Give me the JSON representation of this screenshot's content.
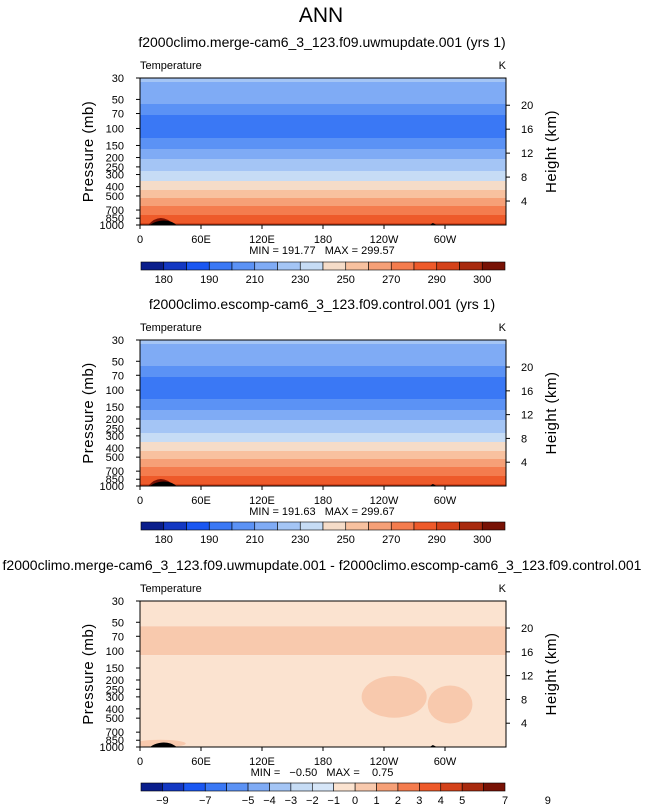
{
  "figure": {
    "title": "ANN"
  },
  "chart_data": [
    {
      "type": "heatmap",
      "title": "f2000climo.merge-cam6_3_123.f09.uwmupdate.001 (yrs 1)",
      "variable": "Temperature",
      "units": "K",
      "xlabel": "",
      "ylabel": "Pressure  (mb)",
      "y2label": "Height  (km)",
      "x_ticks": [
        "0",
        "60E",
        "120E",
        "180",
        "120W",
        "60W"
      ],
      "x_tick_values": [
        0,
        60,
        120,
        180,
        240,
        300
      ],
      "xlim": [
        0,
        360
      ],
      "y_ticks": [
        "30",
        "50",
        "70",
        "100",
        "150",
        "200",
        "250",
        "300",
        "400",
        "500",
        "700",
        "850",
        "1000"
      ],
      "y_tick_values": [
        30,
        50,
        70,
        100,
        150,
        200,
        250,
        300,
        400,
        500,
        700,
        850,
        1000
      ],
      "ylim": [
        1000,
        30
      ],
      "y2_ticks": [
        "4",
        "8",
        "12",
        "16",
        "20"
      ],
      "y2_tick_values": [
        4,
        8,
        12,
        16,
        20
      ],
      "minmax_text": "MIN = 191.77   MAX = 299.57",
      "min": 191.77,
      "max": 299.57,
      "levels": [
        180,
        185,
        190,
        200,
        210,
        220,
        230,
        240,
        250,
        260,
        270,
        280,
        290,
        295,
        300
      ],
      "colorbar_labels": [
        "180",
        "190",
        "210",
        "230",
        "250",
        "270",
        "290",
        "300"
      ],
      "colorbar_label_levels": [
        180,
        190,
        210,
        230,
        250,
        270,
        290,
        300
      ],
      "colors": [
        "#0a1e8c",
        "#1338c3",
        "#1a57f2",
        "#3a78f5",
        "#5b92f5",
        "#7fabf5",
        "#a4c5f5",
        "#c6dcf5",
        "#f5dcc8",
        "#f8c19f",
        "#f6a077",
        "#f47c4e",
        "#ee5a2a",
        "#d4421a",
        "#a82a0e",
        "#781205"
      ],
      "profile_pressure": [
        30,
        40,
        50,
        60,
        70,
        85,
        100,
        125,
        150,
        175,
        200,
        225,
        250,
        300,
        350,
        400,
        450,
        500,
        600,
        700,
        800,
        850,
        900,
        950,
        1000
      ],
      "profile_temperature": [
        222,
        216,
        213,
        208,
        201,
        196,
        195,
        200,
        206,
        214,
        219,
        223,
        226,
        233,
        240,
        246,
        252,
        257,
        267,
        275,
        281,
        284,
        287,
        290,
        293
      ]
    },
    {
      "type": "heatmap",
      "title": "f2000climo.escomp-cam6_3_123.f09.control.001 (yrs 1)",
      "variable": "Temperature",
      "units": "K",
      "xlabel": "",
      "ylabel": "Pressure  (mb)",
      "y2label": "Height  (km)",
      "x_ticks": [
        "0",
        "60E",
        "120E",
        "180",
        "120W",
        "60W"
      ],
      "x_tick_values": [
        0,
        60,
        120,
        180,
        240,
        300
      ],
      "xlim": [
        0,
        360
      ],
      "y_ticks": [
        "30",
        "50",
        "70",
        "100",
        "150",
        "200",
        "250",
        "300",
        "400",
        "500",
        "700",
        "850",
        "1000"
      ],
      "y_tick_values": [
        30,
        50,
        70,
        100,
        150,
        200,
        250,
        300,
        400,
        500,
        700,
        850,
        1000
      ],
      "ylim": [
        1000,
        30
      ],
      "y2_ticks": [
        "4",
        "8",
        "12",
        "16",
        "20"
      ],
      "y2_tick_values": [
        4,
        8,
        12,
        16,
        20
      ],
      "minmax_text": "MIN = 191.63   MAX = 299.67",
      "min": 191.63,
      "max": 299.67,
      "levels": [
        180,
        185,
        190,
        200,
        210,
        220,
        230,
        240,
        250,
        260,
        270,
        280,
        290,
        295,
        300
      ],
      "colorbar_labels": [
        "180",
        "190",
        "210",
        "230",
        "250",
        "270",
        "290",
        "300"
      ],
      "colorbar_label_levels": [
        180,
        190,
        210,
        230,
        250,
        270,
        290,
        300
      ],
      "colors": [
        "#0a1e8c",
        "#1338c3",
        "#1a57f2",
        "#3a78f5",
        "#5b92f5",
        "#7fabf5",
        "#a4c5f5",
        "#c6dcf5",
        "#f5dcc8",
        "#f8c19f",
        "#f6a077",
        "#f47c4e",
        "#ee5a2a",
        "#d4421a",
        "#a82a0e",
        "#781205"
      ],
      "profile_pressure": [
        30,
        40,
        50,
        60,
        70,
        85,
        100,
        125,
        150,
        175,
        200,
        225,
        250,
        300,
        350,
        400,
        450,
        500,
        600,
        700,
        800,
        850,
        900,
        950,
        1000
      ],
      "profile_temperature": [
        222,
        216,
        213,
        208,
        201,
        196,
        195,
        200,
        206,
        214,
        219,
        223,
        226,
        233,
        240,
        246,
        252,
        257,
        267,
        275,
        281,
        284,
        287,
        290,
        293
      ]
    },
    {
      "type": "heatmap",
      "title": "f2000climo.merge-cam6_3_123.f09.uwmupdate.001 - f2000climo.escomp-cam6_3_123.f09.control.001",
      "variable": "Temperature",
      "units": "K",
      "xlabel": "",
      "ylabel": "Pressure  (mb)",
      "y2label": "Height  (km)",
      "x_ticks": [
        "0",
        "60E",
        "120E",
        "180",
        "120W",
        "60W"
      ],
      "x_tick_values": [
        0,
        60,
        120,
        180,
        240,
        300
      ],
      "xlim": [
        0,
        360
      ],
      "y_ticks": [
        "30",
        "50",
        "70",
        "100",
        "150",
        "200",
        "250",
        "300",
        "400",
        "500",
        "700",
        "850",
        "1000"
      ],
      "y_tick_values": [
        30,
        50,
        70,
        100,
        150,
        200,
        250,
        300,
        400,
        500,
        700,
        850,
        1000
      ],
      "ylim": [
        1000,
        30
      ],
      "y2_ticks": [
        "4",
        "8",
        "12",
        "16",
        "20"
      ],
      "y2_tick_values": [
        4,
        8,
        12,
        16,
        20
      ],
      "minmax_text": "MIN =   −0.50   MAX =    0.75",
      "min": -0.5,
      "max": 0.75,
      "levels": [
        -9,
        -8,
        -7,
        -6,
        -5,
        -4,
        -3,
        -2,
        -1,
        0,
        1,
        2,
        3,
        4,
        5,
        6,
        7,
        8,
        9
      ],
      "colorbar_labels": [
        "−9",
        "−7",
        "−5",
        "−4",
        "−3",
        "−2",
        "−1",
        "0",
        "1",
        "2",
        "3",
        "4",
        "5",
        "7",
        "9"
      ],
      "colorbar_label_levels": [
        -9,
        -7,
        -5,
        -4,
        -3,
        -2,
        -1,
        0,
        1,
        2,
        3,
        4,
        5,
        7,
        9
      ],
      "colors": [
        "#0a1e8c",
        "#1338c3",
        "#1a57f2",
        "#3a78f5",
        "#5b92f5",
        "#7fabf5",
        "#a4c5f5",
        "#c6dcf5",
        "#d6e6f8",
        "#fbe3d0",
        "#f8c9ad",
        "#f6a077",
        "#f47c4e",
        "#ee5a2a",
        "#d4421a",
        "#a82a0e",
        "#781205"
      ],
      "bands": [
        {
          "p_top": 30,
          "p_bottom": 55,
          "value": -0.2
        },
        {
          "p_top": 55,
          "p_bottom": 110,
          "value": 0.3
        },
        {
          "p_top": 110,
          "p_bottom": 1000,
          "value": -0.2
        }
      ],
      "blobs": [
        {
          "lon": 250,
          "p": 300,
          "lon_half_width": 32,
          "p_half_depth_km": 2.2,
          "value": 0.3
        },
        {
          "lon": 305,
          "p": 360,
          "lon_half_width": 22,
          "p_half_depth_km": 2.0,
          "value": 0.3
        },
        {
          "lon": 20,
          "p": 920,
          "lon_half_width": 25,
          "p_half_depth_km": 0.4,
          "value": 0.3
        }
      ]
    }
  ]
}
